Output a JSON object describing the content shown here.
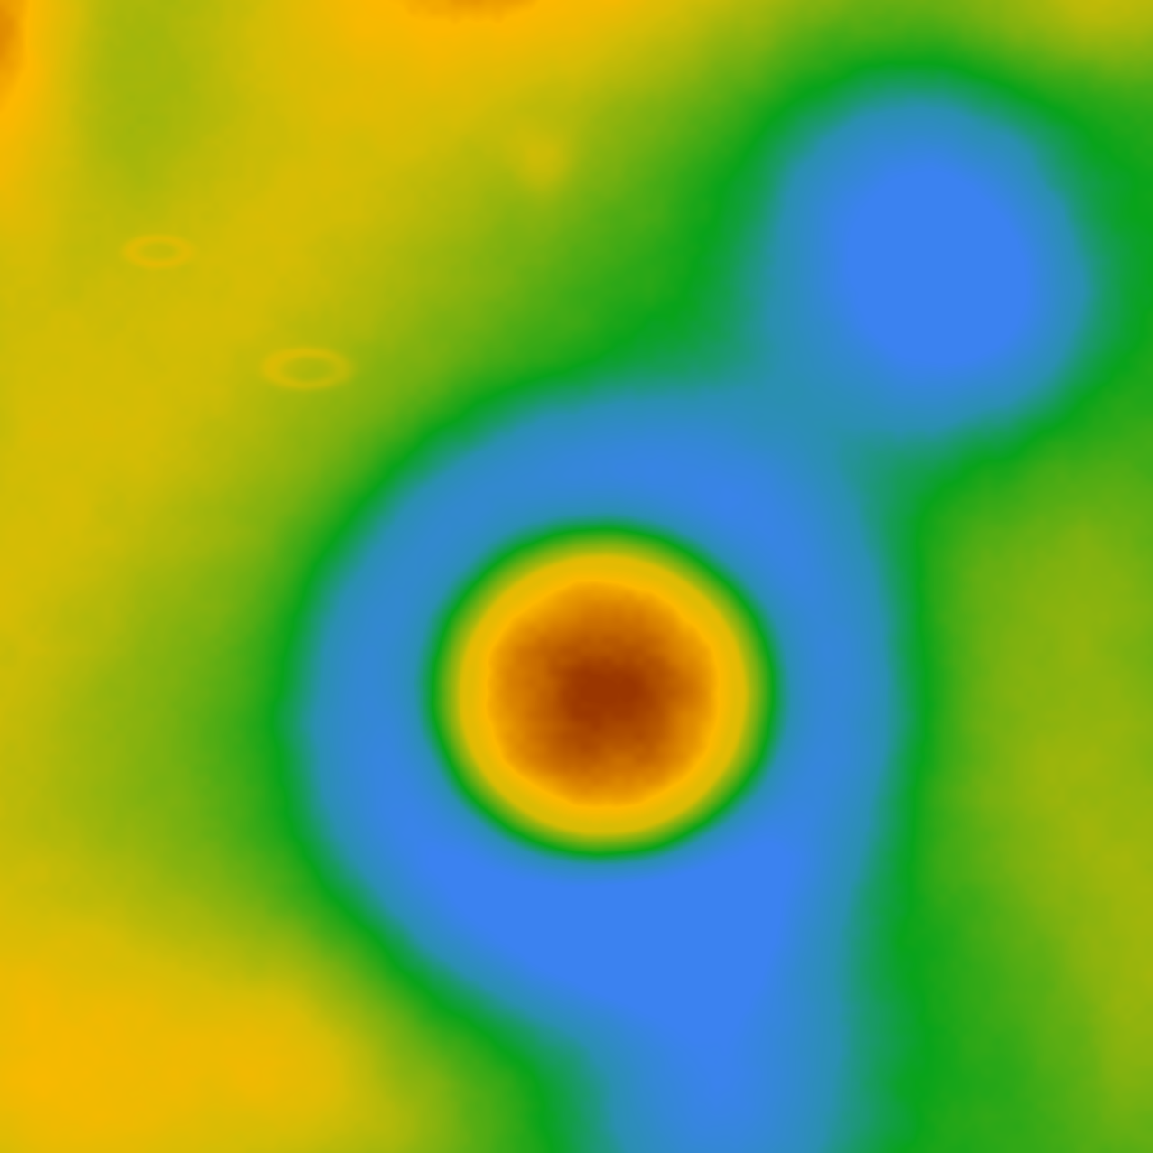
{
  "map": {
    "kind": "elevation-colormap",
    "colormap": {
      "stops": [
        {
          "level": 0.0,
          "color": "#3b82f0"
        },
        {
          "level": 0.22,
          "color": "#2a8fb0"
        },
        {
          "level": 0.38,
          "color": "#08a31a"
        },
        {
          "level": 0.55,
          "color": "#78b010"
        },
        {
          "level": 0.72,
          "color": "#d2bc05"
        },
        {
          "level": 0.84,
          "color": "#fdb800"
        },
        {
          "level": 0.92,
          "color": "#d27800"
        },
        {
          "level": 1.0,
          "color": "#9a3600"
        }
      ]
    },
    "features": [
      {
        "name": "central-crater-mound",
        "kind": "peak"
      },
      {
        "name": "crater-moat",
        "kind": "basin"
      },
      {
        "name": "northwest-ridge",
        "kind": "highland"
      },
      {
        "name": "northeast-basin",
        "kind": "basin"
      },
      {
        "name": "south-basin",
        "kind": "basin"
      },
      {
        "name": "southwest-highland",
        "kind": "highland"
      },
      {
        "name": "east-highland",
        "kind": "highland"
      }
    ]
  }
}
